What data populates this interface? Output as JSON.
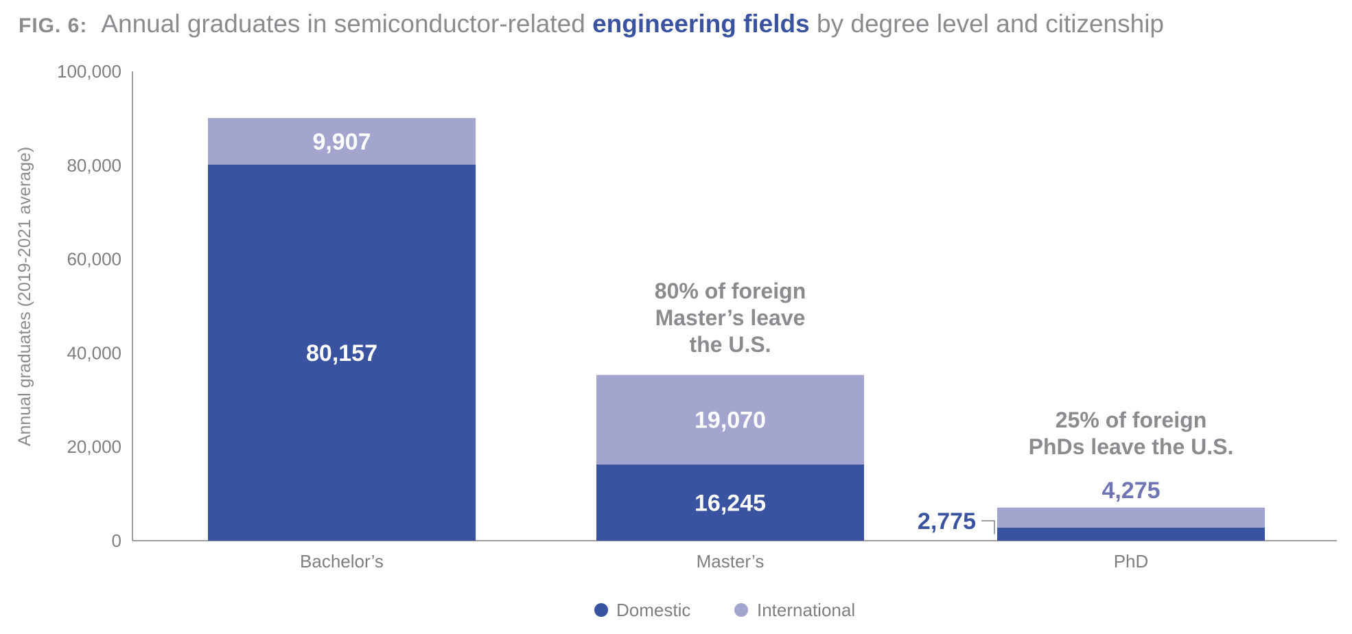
{
  "figure": {
    "label": "FIG. 6:",
    "title_before": "Annual graduates in semiconductor-related ",
    "title_highlight": "engineering fields",
    "title_after": " by degree level and citizenship"
  },
  "colors": {
    "domestic": "#3a53a0",
    "international": "#a3a5cf",
    "axis": "#7d7e81",
    "text": "#8a8b8e",
    "label_white": "#ffffff",
    "phd_international_label": "#6f75b4"
  },
  "chart_data": {
    "type": "bar",
    "stacked": true,
    "categories": [
      "Bachelor’s",
      "Master’s",
      "PhD"
    ],
    "series": [
      {
        "name": "Domestic",
        "values": [
          80157,
          16245,
          2775
        ],
        "labels": [
          "80,157",
          "16,245",
          "2,775"
        ]
      },
      {
        "name": "International",
        "values": [
          9907,
          19070,
          4275
        ],
        "labels": [
          "9,907",
          "19,070",
          "4,275"
        ]
      }
    ],
    "ylabel": "Annual graduates (2019-2021 average)",
    "xlabel": "",
    "ylim": [
      0,
      100000
    ],
    "yticks": [
      0,
      20000,
      40000,
      60000,
      80000,
      100000
    ],
    "ytick_labels": [
      "0",
      "20,000",
      "40,000",
      "60,000",
      "80,000",
      "100,000"
    ],
    "grid": false,
    "legend_position": "bottom-center",
    "annotations": [
      {
        "category": "Master’s",
        "lines": [
          "80% of foreign",
          "Master’s leave",
          "the U.S."
        ]
      },
      {
        "category": "PhD",
        "lines": [
          "25% of foreign",
          "PhDs leave the U.S."
        ]
      }
    ]
  }
}
